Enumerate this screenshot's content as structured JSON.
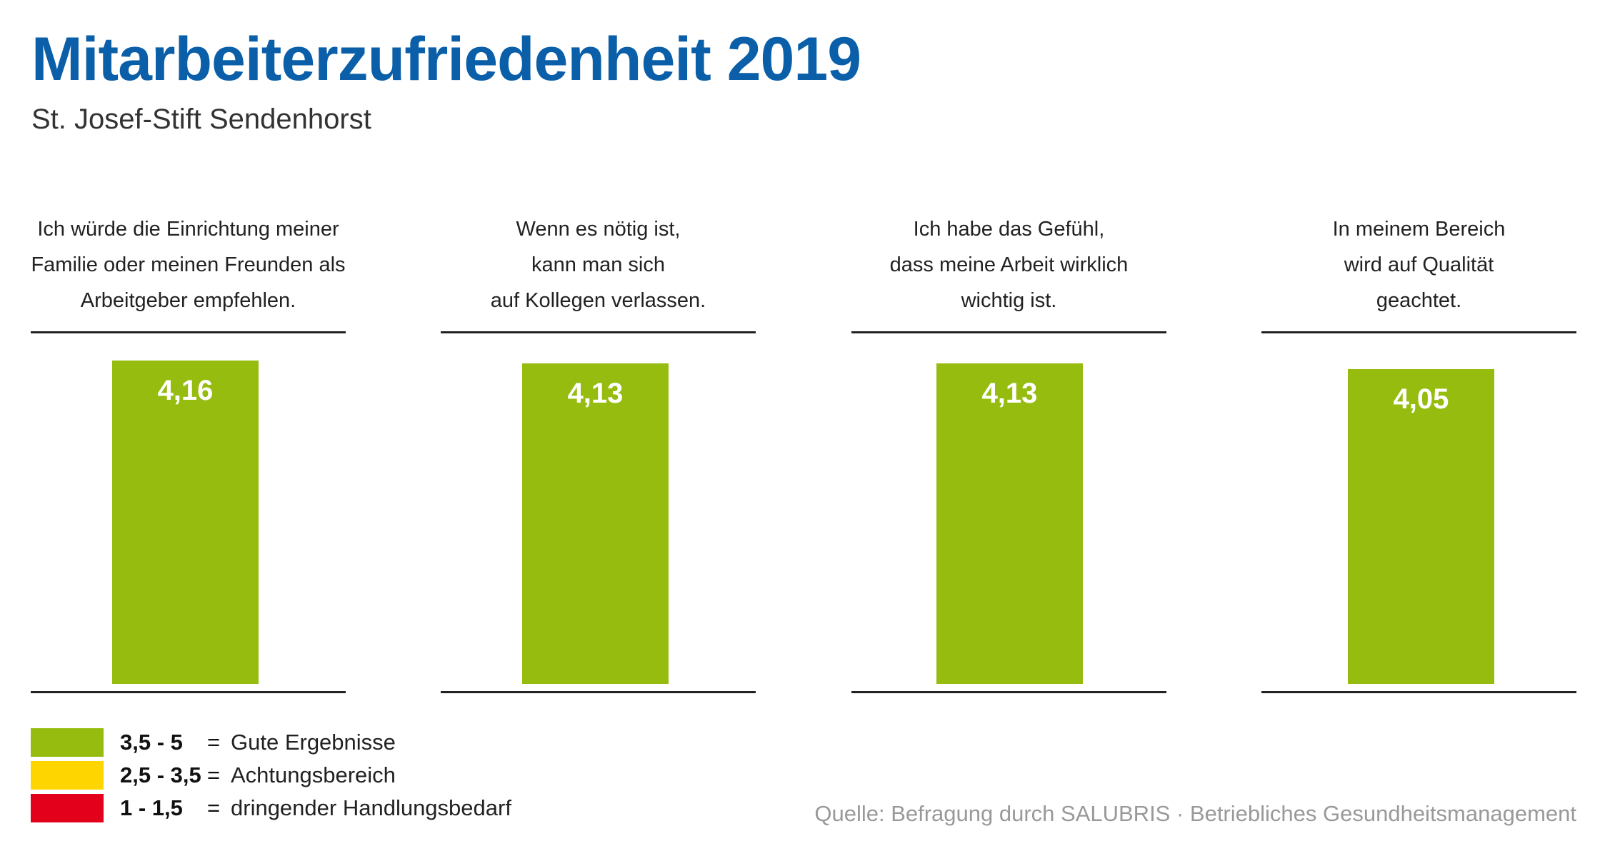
{
  "chart_data": {
    "type": "bar",
    "title": "Mitarbeiterzufriedenheit 2019",
    "subtitle": "St. Josef-Stift Sendenhorst",
    "ylim": [
      0,
      5
    ],
    "grid": false,
    "categories": [
      [
        "Ich würde die Einrichtung meiner",
        "Familie oder meinen Freunden als",
        "Arbeitgeber empfehlen."
      ],
      [
        "Wenn es nötig ist,",
        "kann man sich",
        "auf Kollegen verlassen."
      ],
      [
        "Ich habe das Gefühl,",
        "dass meine  Arbeit wirklich",
        "wichtig ist."
      ],
      [
        "In meinem Bereich",
        "wird auf Qualität",
        "geachtet."
      ]
    ],
    "values": [
      4.16,
      4.13,
      4.13,
      4.05
    ],
    "value_labels": [
      "4,16",
      "4,13",
      "4,13",
      "4,05"
    ],
    "bar_color": "#95bc0f",
    "legend": [
      {
        "range": "3,5 - 5",
        "eq": "=",
        "label": "Gute Ergebnisse",
        "color": "#95bc0f"
      },
      {
        "range": "2,5 - 3,5",
        "eq": "=",
        "label": "Achtungsbereich",
        "color": "#ffd500"
      },
      {
        "range": "1 - 1,5",
        "eq": "=",
        "label": "dringender Handlungsbedarf",
        "color": "#e2001a"
      }
    ],
    "legend_position": "bottom-left",
    "source": "Quelle: Befragung durch SALUBRIS · Betriebliches Gesundheitsmanagement"
  }
}
